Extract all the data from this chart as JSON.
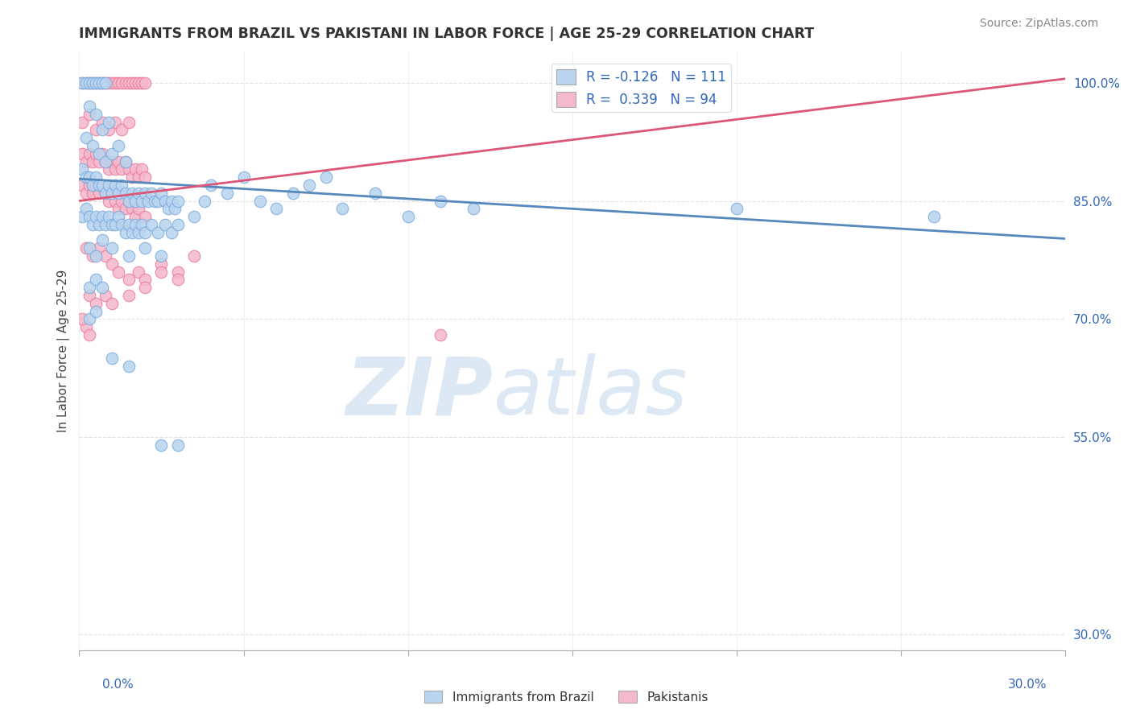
{
  "title": "IMMIGRANTS FROM BRAZIL VS PAKISTANI IN LABOR FORCE | AGE 25-29 CORRELATION CHART",
  "source": "Source: ZipAtlas.com",
  "ylabel": "In Labor Force | Age 25-29",
  "yticks": [
    0.3,
    0.55,
    0.7,
    0.85,
    1.0
  ],
  "ytick_labels": [
    "30.0%",
    "55.0%",
    "70.0%",
    "85.0%",
    "100.0%"
  ],
  "xlim": [
    0.0,
    0.3
  ],
  "ylim": [
    0.28,
    1.04
  ],
  "brazil_R": -0.126,
  "brazil_N": 111,
  "pakistan_R": 0.339,
  "pakistan_N": 94,
  "brazil_color": "#b8d4ee",
  "pakistan_color": "#f4b8cc",
  "brazil_edge_color": "#7aaadd",
  "pakistan_edge_color": "#ee7799",
  "brazil_line_color": "#5588bb",
  "pakistan_line_color": "#dd5577",
  "watermark_zip": "ZIP",
  "watermark_atlas": "atlas",
  "watermark_color": "#dde8f5",
  "brazil_trend_x0": 0.0,
  "brazil_trend_y0": 0.878,
  "brazil_trend_x1": 0.3,
  "brazil_trend_y1": 0.802,
  "pakistan_trend_x0": 0.0,
  "pakistan_trend_y0": 0.85,
  "pakistan_trend_x1": 0.3,
  "pakistan_trend_y1": 1.005,
  "brazil_points": [
    [
      0.001,
      1.0
    ],
    [
      0.002,
      1.0
    ],
    [
      0.003,
      1.0
    ],
    [
      0.004,
      1.0
    ],
    [
      0.005,
      1.0
    ],
    [
      0.006,
      1.0
    ],
    [
      0.007,
      1.0
    ],
    [
      0.008,
      1.0
    ],
    [
      0.003,
      0.97
    ],
    [
      0.005,
      0.96
    ],
    [
      0.007,
      0.94
    ],
    [
      0.009,
      0.95
    ],
    [
      0.002,
      0.93
    ],
    [
      0.004,
      0.92
    ],
    [
      0.006,
      0.91
    ],
    [
      0.008,
      0.9
    ],
    [
      0.01,
      0.91
    ],
    [
      0.012,
      0.92
    ],
    [
      0.014,
      0.9
    ],
    [
      0.001,
      0.89
    ],
    [
      0.002,
      0.88
    ],
    [
      0.003,
      0.88
    ],
    [
      0.004,
      0.87
    ],
    [
      0.005,
      0.88
    ],
    [
      0.006,
      0.87
    ],
    [
      0.007,
      0.87
    ],
    [
      0.008,
      0.86
    ],
    [
      0.009,
      0.87
    ],
    [
      0.01,
      0.86
    ],
    [
      0.011,
      0.87
    ],
    [
      0.012,
      0.86
    ],
    [
      0.013,
      0.87
    ],
    [
      0.014,
      0.86
    ],
    [
      0.015,
      0.85
    ],
    [
      0.016,
      0.86
    ],
    [
      0.017,
      0.85
    ],
    [
      0.018,
      0.86
    ],
    [
      0.019,
      0.85
    ],
    [
      0.02,
      0.86
    ],
    [
      0.021,
      0.85
    ],
    [
      0.022,
      0.86
    ],
    [
      0.023,
      0.85
    ],
    [
      0.024,
      0.85
    ],
    [
      0.025,
      0.86
    ],
    [
      0.026,
      0.85
    ],
    [
      0.027,
      0.84
    ],
    [
      0.028,
      0.85
    ],
    [
      0.029,
      0.84
    ],
    [
      0.03,
      0.85
    ],
    [
      0.001,
      0.83
    ],
    [
      0.002,
      0.84
    ],
    [
      0.003,
      0.83
    ],
    [
      0.004,
      0.82
    ],
    [
      0.005,
      0.83
    ],
    [
      0.006,
      0.82
    ],
    [
      0.007,
      0.83
    ],
    [
      0.008,
      0.82
    ],
    [
      0.009,
      0.83
    ],
    [
      0.01,
      0.82
    ],
    [
      0.011,
      0.82
    ],
    [
      0.012,
      0.83
    ],
    [
      0.013,
      0.82
    ],
    [
      0.014,
      0.81
    ],
    [
      0.015,
      0.82
    ],
    [
      0.016,
      0.81
    ],
    [
      0.017,
      0.82
    ],
    [
      0.018,
      0.81
    ],
    [
      0.019,
      0.82
    ],
    [
      0.02,
      0.81
    ],
    [
      0.022,
      0.82
    ],
    [
      0.024,
      0.81
    ],
    [
      0.026,
      0.82
    ],
    [
      0.028,
      0.81
    ],
    [
      0.03,
      0.82
    ],
    [
      0.035,
      0.83
    ],
    [
      0.038,
      0.85
    ],
    [
      0.04,
      0.87
    ],
    [
      0.045,
      0.86
    ],
    [
      0.05,
      0.88
    ],
    [
      0.055,
      0.85
    ],
    [
      0.06,
      0.84
    ],
    [
      0.065,
      0.86
    ],
    [
      0.07,
      0.87
    ],
    [
      0.075,
      0.88
    ],
    [
      0.08,
      0.84
    ],
    [
      0.09,
      0.86
    ],
    [
      0.1,
      0.83
    ],
    [
      0.11,
      0.85
    ],
    [
      0.12,
      0.84
    ],
    [
      0.2,
      0.84
    ],
    [
      0.26,
      0.83
    ],
    [
      0.003,
      0.79
    ],
    [
      0.005,
      0.78
    ],
    [
      0.007,
      0.8
    ],
    [
      0.01,
      0.79
    ],
    [
      0.015,
      0.78
    ],
    [
      0.02,
      0.79
    ],
    [
      0.025,
      0.78
    ],
    [
      0.003,
      0.74
    ],
    [
      0.005,
      0.75
    ],
    [
      0.007,
      0.74
    ],
    [
      0.003,
      0.7
    ],
    [
      0.005,
      0.71
    ],
    [
      0.01,
      0.65
    ],
    [
      0.015,
      0.64
    ],
    [
      0.025,
      0.54
    ],
    [
      0.03,
      0.54
    ]
  ],
  "pakistan_points": [
    [
      0.001,
      1.0
    ],
    [
      0.002,
      1.0
    ],
    [
      0.003,
      1.0
    ],
    [
      0.004,
      1.0
    ],
    [
      0.005,
      1.0
    ],
    [
      0.006,
      1.0
    ],
    [
      0.007,
      1.0
    ],
    [
      0.008,
      1.0
    ],
    [
      0.009,
      1.0
    ],
    [
      0.01,
      1.0
    ],
    [
      0.011,
      1.0
    ],
    [
      0.012,
      1.0
    ],
    [
      0.013,
      1.0
    ],
    [
      0.014,
      1.0
    ],
    [
      0.015,
      1.0
    ],
    [
      0.016,
      1.0
    ],
    [
      0.017,
      1.0
    ],
    [
      0.018,
      1.0
    ],
    [
      0.019,
      1.0
    ],
    [
      0.02,
      1.0
    ],
    [
      0.001,
      0.95
    ],
    [
      0.003,
      0.96
    ],
    [
      0.005,
      0.94
    ],
    [
      0.007,
      0.95
    ],
    [
      0.009,
      0.94
    ],
    [
      0.011,
      0.95
    ],
    [
      0.013,
      0.94
    ],
    [
      0.015,
      0.95
    ],
    [
      0.001,
      0.91
    ],
    [
      0.002,
      0.9
    ],
    [
      0.003,
      0.91
    ],
    [
      0.004,
      0.9
    ],
    [
      0.005,
      0.91
    ],
    [
      0.006,
      0.9
    ],
    [
      0.007,
      0.91
    ],
    [
      0.008,
      0.9
    ],
    [
      0.009,
      0.89
    ],
    [
      0.01,
      0.9
    ],
    [
      0.011,
      0.89
    ],
    [
      0.012,
      0.9
    ],
    [
      0.013,
      0.89
    ],
    [
      0.014,
      0.9
    ],
    [
      0.015,
      0.89
    ],
    [
      0.016,
      0.88
    ],
    [
      0.017,
      0.89
    ],
    [
      0.018,
      0.88
    ],
    [
      0.019,
      0.89
    ],
    [
      0.02,
      0.88
    ],
    [
      0.001,
      0.87
    ],
    [
      0.002,
      0.86
    ],
    [
      0.003,
      0.87
    ],
    [
      0.004,
      0.86
    ],
    [
      0.005,
      0.87
    ],
    [
      0.006,
      0.86
    ],
    [
      0.007,
      0.87
    ],
    [
      0.008,
      0.86
    ],
    [
      0.009,
      0.85
    ],
    [
      0.01,
      0.86
    ],
    [
      0.011,
      0.85
    ],
    [
      0.012,
      0.84
    ],
    [
      0.013,
      0.85
    ],
    [
      0.014,
      0.84
    ],
    [
      0.015,
      0.85
    ],
    [
      0.016,
      0.84
    ],
    [
      0.017,
      0.83
    ],
    [
      0.018,
      0.84
    ],
    [
      0.02,
      0.83
    ],
    [
      0.002,
      0.79
    ],
    [
      0.004,
      0.78
    ],
    [
      0.006,
      0.79
    ],
    [
      0.008,
      0.78
    ],
    [
      0.01,
      0.77
    ],
    [
      0.012,
      0.76
    ],
    [
      0.015,
      0.75
    ],
    [
      0.018,
      0.76
    ],
    [
      0.02,
      0.75
    ],
    [
      0.025,
      0.77
    ],
    [
      0.03,
      0.76
    ],
    [
      0.003,
      0.73
    ],
    [
      0.005,
      0.72
    ],
    [
      0.008,
      0.73
    ],
    [
      0.01,
      0.72
    ],
    [
      0.015,
      0.73
    ],
    [
      0.02,
      0.74
    ],
    [
      0.025,
      0.76
    ],
    [
      0.03,
      0.75
    ],
    [
      0.035,
      0.78
    ],
    [
      0.002,
      0.69
    ],
    [
      0.003,
      0.68
    ],
    [
      0.001,
      0.7
    ],
    [
      0.11,
      0.68
    ]
  ]
}
